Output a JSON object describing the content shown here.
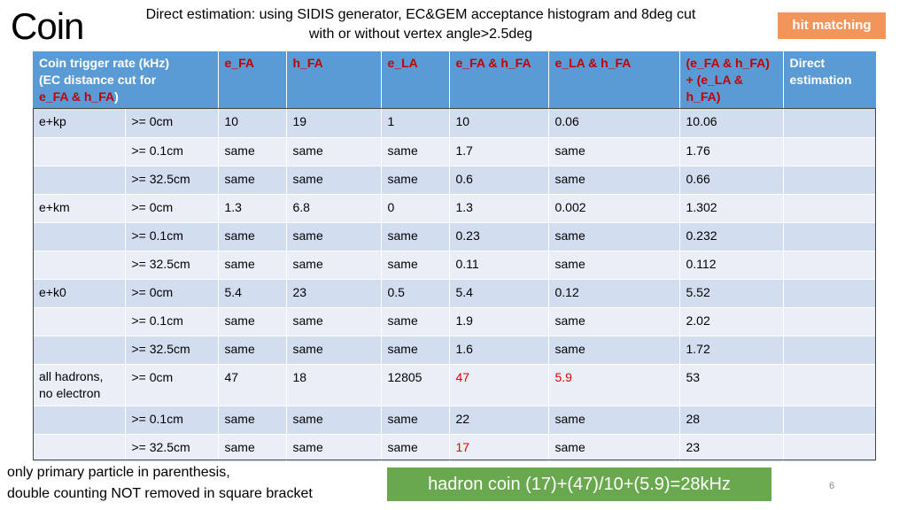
{
  "slide": {
    "title": "Coin",
    "subtitle_line1": "Direct estimation: using SIDIS generator, EC&GEM acceptance histogram and 8deg cut",
    "subtitle_line2": "with or without vertex angle>2.5deg",
    "badge": "hit matching",
    "note_line1": "only primary particle in parenthesis,",
    "note_line2": "double counting NOT removed in square bracket",
    "summary": "hadron coin (17)+(47)/10+(5.9)=28kHz",
    "page_number": "6"
  },
  "table": {
    "header": {
      "label_line1": "Coin trigger rate (kHz)",
      "label_line2": "(EC distance cut for",
      "label_line3_red": "e_FA & h_FA",
      "label_line3_close": ")",
      "col1": "e_FA",
      "col2": "h_FA",
      "col3": "e_LA",
      "col4": "e_FA & h_FA",
      "col5": "e_LA & h_FA",
      "col6_line1": "(e_FA & h_FA)",
      "col6_line2": "+ (e_LA &",
      "col6_line3": "h_FA)",
      "col7_line1": "Direct",
      "col7_line2": "estimation"
    },
    "rows": [
      {
        "group": "e+kp",
        "cut": ">= 0cm",
        "c1": "10",
        "c2": "19",
        "c3": "1",
        "c4": "10",
        "c5": "0.06",
        "c6": "10.06",
        "c7": ""
      },
      {
        "group": "",
        "cut": ">= 0.1cm",
        "c1": "same",
        "c2": "same",
        "c3": "same",
        "c4": "1.7",
        "c5": "same",
        "c6": "1.76",
        "c7": ""
      },
      {
        "group": "",
        "cut": ">= 32.5cm",
        "c1": "same",
        "c2": "same",
        "c3": "same",
        "c4": "0.6",
        "c5": "same",
        "c6": "0.66",
        "c7": ""
      },
      {
        "group": "e+km",
        "cut": ">= 0cm",
        "c1": "1.3",
        "c2": "6.8",
        "c3": "0",
        "c4": "1.3",
        "c5": "0.002",
        "c6": "1.302",
        "c7": ""
      },
      {
        "group": "",
        "cut": ">= 0.1cm",
        "c1": "same",
        "c2": "same",
        "c3": "same",
        "c4": "0.23",
        "c5": "same",
        "c6": "0.232",
        "c7": ""
      },
      {
        "group": "",
        "cut": ">= 32.5cm",
        "c1": "same",
        "c2": "same",
        "c3": "same",
        "c4": "0.11",
        "c5": "same",
        "c6": "0.112",
        "c7": ""
      },
      {
        "group": "e+k0",
        "cut": ">= 0cm",
        "c1": "5.4",
        "c2": "23",
        "c3": "0.5",
        "c4": "5.4",
        "c5": "0.12",
        "c6": "5.52",
        "c7": ""
      },
      {
        "group": "",
        "cut": ">= 0.1cm",
        "c1": "same",
        "c2": "same",
        "c3": "same",
        "c4": "1.9",
        "c5": "same",
        "c6": "2.02",
        "c7": ""
      },
      {
        "group": "",
        "cut": ">= 32.5cm",
        "c1": "same",
        "c2": "same",
        "c3": "same",
        "c4": "1.6",
        "c5": "same",
        "c6": "1.72",
        "c7": ""
      },
      {
        "group_line1": "all hadrons,",
        "group_line2": "no electron",
        "cut": ">= 0cm",
        "c1": "47",
        "c2": "18",
        "c3": "12805",
        "c4": "47",
        "c5": "5.9",
        "c6": "53",
        "c7": ""
      },
      {
        "group": "",
        "cut": ">= 0.1cm",
        "c1": "same",
        "c2": "same",
        "c3": "same",
        "c4": "22",
        "c5": "same",
        "c6": "28",
        "c7": ""
      },
      {
        "group": "",
        "cut": ">= 32.5cm",
        "c1": "same",
        "c2": "same",
        "c3": "same",
        "c4": "17",
        "c5": "same",
        "c6": "23",
        "c7": ""
      }
    ]
  }
}
